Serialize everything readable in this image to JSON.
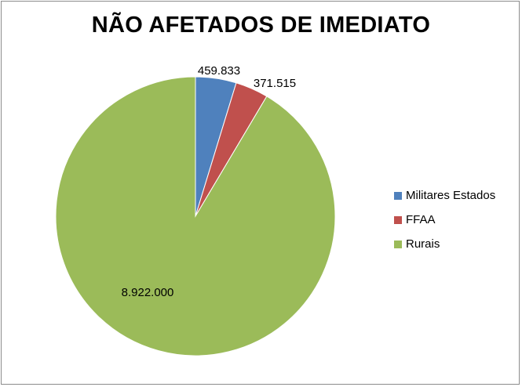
{
  "chart_data": {
    "type": "pie",
    "title": "NÃO AFETADOS DE IMEDIATO",
    "categories": [
      "Militares Estados",
      "FFAA",
      "Rurais"
    ],
    "values": [
      459833,
      371515,
      8922000
    ],
    "data_labels": [
      "459.833",
      "371.515",
      "8.922.000"
    ],
    "colors": [
      "#4f81bd",
      "#c0504d",
      "#9bbb59"
    ],
    "legend_position": "right"
  }
}
